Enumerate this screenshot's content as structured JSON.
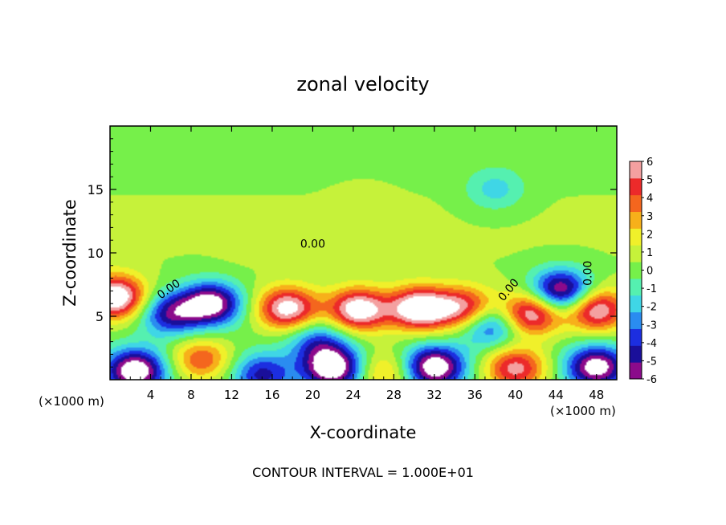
{
  "chart_data": {
    "type": "heatmap",
    "title": "zonal velocity",
    "xlabel": "X-coordinate",
    "ylabel": "Z-coordinate",
    "x_unit_left": "(×1000 m)",
    "x_unit_right": "(×1000 m)",
    "xlim": [
      0,
      50
    ],
    "ylim": [
      0,
      20
    ],
    "x_ticks": [
      4,
      8,
      12,
      16,
      20,
      24,
      28,
      32,
      36,
      40,
      44,
      48
    ],
    "y_ticks": [
      5,
      10,
      15
    ],
    "contour_labels": [
      "0.00",
      "0.00",
      "0.00",
      "0.00"
    ],
    "footer": "CONTOUR INTERVAL = 1.000E+01",
    "colorbar": {
      "min": -6,
      "max": 6,
      "ticks": [
        6,
        5,
        4,
        3,
        2,
        1,
        0,
        -1,
        -2,
        -3,
        -4,
        -5,
        -6
      ],
      "colors": [
        "#8b0a8b",
        "#1a0f9a",
        "#1c2ee0",
        "#2a8cf0",
        "#3fd6e6",
        "#55f0b0",
        "#76f04a",
        "#c6f23a",
        "#f0f02a",
        "#f7b01a",
        "#f4661e",
        "#ec2a2a",
        "#f4a0a0"
      ]
    },
    "features": [
      {
        "x": 30.5,
        "z": 5.6,
        "u": 7.5
      },
      {
        "x": 24.5,
        "z": 5.5,
        "u": 7.0
      },
      {
        "x": 17.5,
        "z": 5.6,
        "u": 6.6
      },
      {
        "x": 41.5,
        "z": 5.2,
        "u": 6.5
      },
      {
        "x": 35,
        "z": 5.6,
        "u": 5.5
      },
      {
        "x": 0.5,
        "z": 6.5,
        "u": 7.5
      },
      {
        "x": 48,
        "z": 5.5,
        "u": 6.2
      },
      {
        "x": 10,
        "z": 6.0,
        "u": -7.0
      },
      {
        "x": 44.5,
        "z": 7.0,
        "u": -7.0
      },
      {
        "x": 6,
        "z": 5.2,
        "u": -5.0
      },
      {
        "x": 37.5,
        "z": 4.3,
        "u": -4.5
      },
      {
        "x": 20.5,
        "z": 3.0,
        "u": -3.5
      },
      {
        "x": 32,
        "z": 1.0,
        "u": -7.5
      },
      {
        "x": 22,
        "z": 0.9,
        "u": -7.5
      },
      {
        "x": 2.5,
        "z": 0.7,
        "u": -7.5
      },
      {
        "x": 48,
        "z": 1.0,
        "u": -7.0
      },
      {
        "x": 15,
        "z": 0.4,
        "u": -4.5
      },
      {
        "x": 9,
        "z": 1.6,
        "u": 4.0
      },
      {
        "x": 40,
        "z": 0.9,
        "u": 5.5
      },
      {
        "x": 27,
        "z": 0.6,
        "u": 3.0
      },
      {
        "x": 38,
        "z": 15,
        "u": -2.2
      },
      {
        "x": 14,
        "z": 11,
        "u": 0.6
      },
      {
        "x": 25,
        "z": 14,
        "u": 0.3
      }
    ]
  }
}
